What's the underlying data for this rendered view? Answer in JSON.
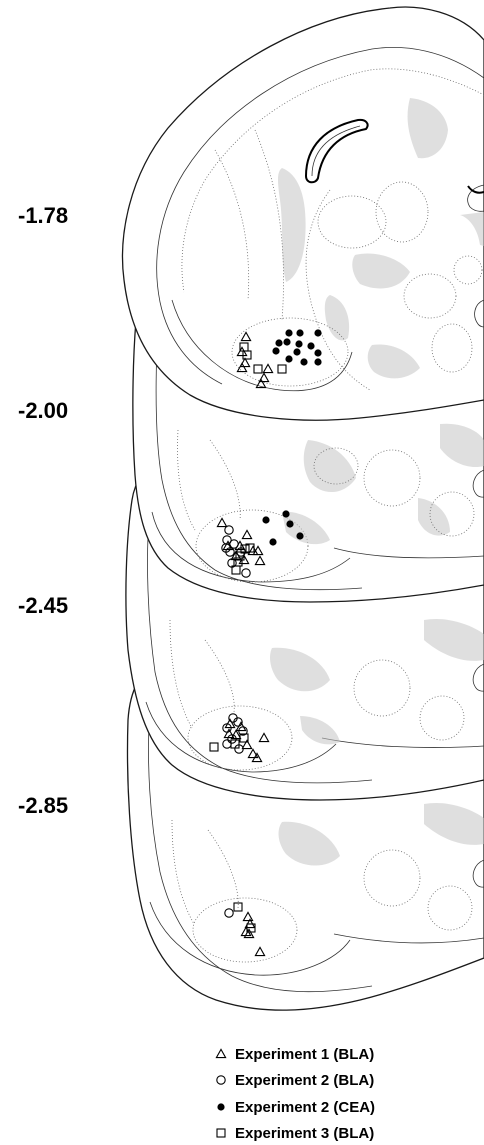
{
  "sections": [
    {
      "ap": "-1.78"
    },
    {
      "ap": "-2.00"
    },
    {
      "ap": "-2.45"
    },
    {
      "ap": "-2.85"
    }
  ],
  "legend": [
    {
      "symbol": "open-triangle",
      "label": "Experiment 1 (BLA)"
    },
    {
      "symbol": "open-circle",
      "label": "Experiment 2 (BLA)"
    },
    {
      "symbol": "filled-circle",
      "label": "Experiment 2 (CEA)"
    },
    {
      "symbol": "open-square",
      "label": "Experiment 3 (BLA)"
    }
  ],
  "colors": {
    "ink": "#000000",
    "stipple": "#c4c4c4",
    "outline": "#1a1a1a"
  }
}
